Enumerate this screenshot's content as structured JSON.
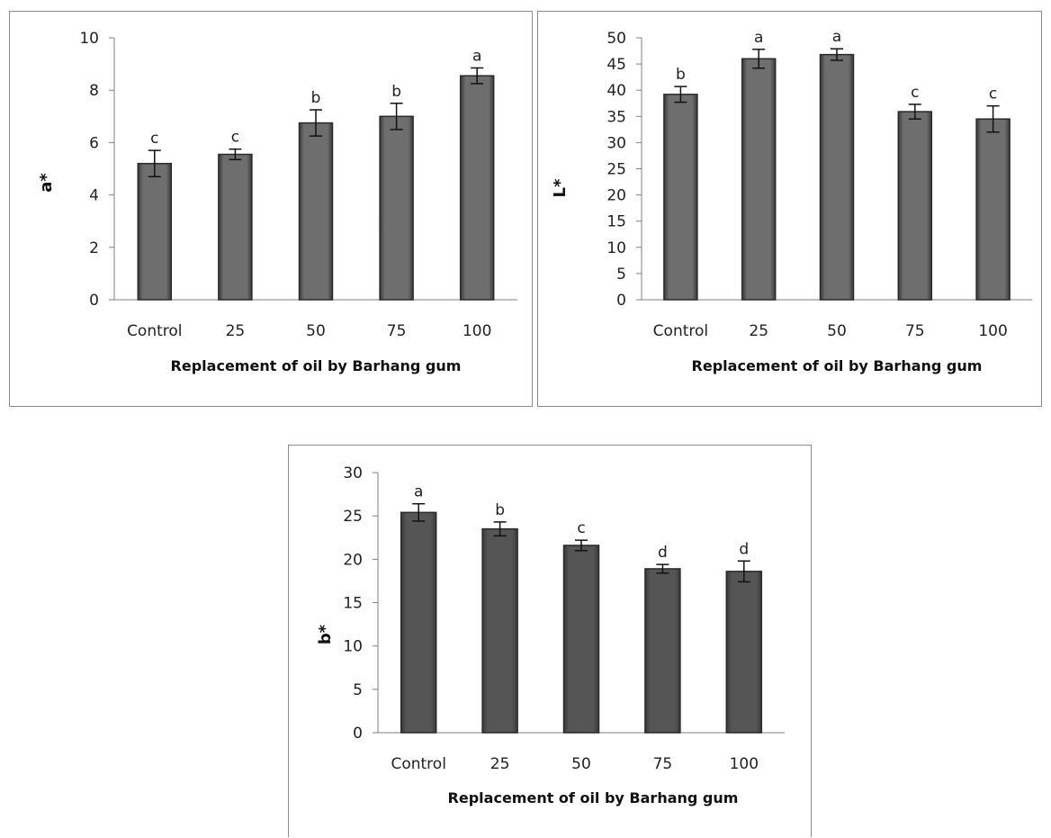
{
  "chart_data": [
    {
      "id": "a",
      "type": "bar",
      "ylabel": "a*",
      "xlabel": "Replacement of oil by Barhang gum",
      "categories": [
        "Control",
        "25",
        "50",
        "75",
        "100"
      ],
      "values": [
        5.2,
        5.55,
        6.75,
        7.0,
        8.55
      ],
      "errors": [
        0.5,
        0.2,
        0.5,
        0.5,
        0.3
      ],
      "significance": [
        "c",
        "c",
        "b",
        "b",
        "a"
      ],
      "ylim": [
        0,
        10
      ],
      "yticks": [
        "0",
        "2",
        "4",
        "6",
        "8",
        "10"
      ],
      "grid": false,
      "bar_color": "#6e6e6e"
    },
    {
      "id": "l",
      "type": "bar",
      "ylabel": "L*",
      "xlabel": "Replacement of oil by Barhang gum",
      "categories": [
        "Control",
        "25",
        "50",
        "75",
        "100"
      ],
      "values": [
        39.2,
        46.0,
        46.8,
        35.9,
        34.5
      ],
      "errors": [
        1.5,
        1.8,
        1.1,
        1.4,
        2.5
      ],
      "significance": [
        "b",
        "a",
        "a",
        "c",
        "c"
      ],
      "ylim": [
        0,
        50
      ],
      "yticks": [
        "0",
        "5",
        "10",
        "15",
        "20",
        "25",
        "30",
        "35",
        "40",
        "45",
        "50"
      ],
      "grid": false,
      "bar_color": "#6e6e6e"
    },
    {
      "id": "b",
      "type": "bar",
      "ylabel": "b*",
      "xlabel": "Replacement of oil by Barhang gum",
      "categories": [
        "Control",
        "25",
        "50",
        "75",
        "100"
      ],
      "values": [
        25.4,
        23.5,
        21.6,
        18.9,
        18.6
      ],
      "errors": [
        1.0,
        0.8,
        0.6,
        0.5,
        1.2
      ],
      "significance": [
        "a",
        "b",
        "c",
        "d",
        "d"
      ],
      "ylim": [
        0,
        30
      ],
      "yticks": [
        "0",
        "5",
        "10",
        "15",
        "20",
        "25",
        "30"
      ],
      "grid": false,
      "bar_color": "#555555"
    }
  ]
}
